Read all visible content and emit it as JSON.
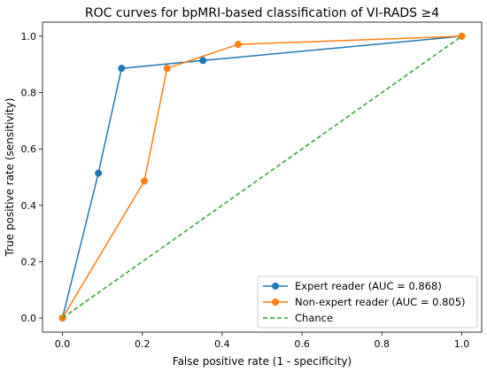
{
  "chart_data": {
    "type": "line",
    "title": "ROC curves for bpMRI-based classification of VI-RADS ≥4",
    "xlabel": "False positive rate (1 - specificity)",
    "ylabel": "True positive rate (sensitivity)",
    "xlim": [
      -0.05,
      1.05
    ],
    "ylim": [
      -0.05,
      1.05
    ],
    "xticks": [
      0.0,
      0.2,
      0.4,
      0.6,
      0.8,
      1.0
    ],
    "yticks": [
      0.0,
      0.2,
      0.4,
      0.6,
      0.8,
      1.0
    ],
    "xtick_labels": [
      "0.0",
      "0.2",
      "0.4",
      "0.6",
      "0.8",
      "1.0"
    ],
    "ytick_labels": [
      "0.0",
      "0.2",
      "0.4",
      "0.6",
      "0.8",
      "1.0"
    ],
    "grid": false,
    "legend_position": "lower-right",
    "series": [
      {
        "name": "Expert reader (AUC = 0.868)",
        "color": "#1f77b4",
        "marker": "circle",
        "x": [
          0.0,
          0.09,
          0.148,
          0.352,
          1.0
        ],
        "y": [
          0.0,
          0.514,
          0.886,
          0.914,
          1.0
        ]
      },
      {
        "name": "Non-expert reader (AUC = 0.805)",
        "color": "#ff7f0e",
        "marker": "circle",
        "x": [
          0.0,
          0.205,
          0.262,
          0.44,
          1.0
        ],
        "y": [
          0.0,
          0.486,
          0.886,
          0.971,
          1.0
        ]
      },
      {
        "name": "Chance",
        "color": "#2ca02c",
        "dashed": true,
        "marker": "none",
        "x": [
          0.0,
          1.0
        ],
        "y": [
          0.0,
          1.0
        ]
      }
    ]
  }
}
